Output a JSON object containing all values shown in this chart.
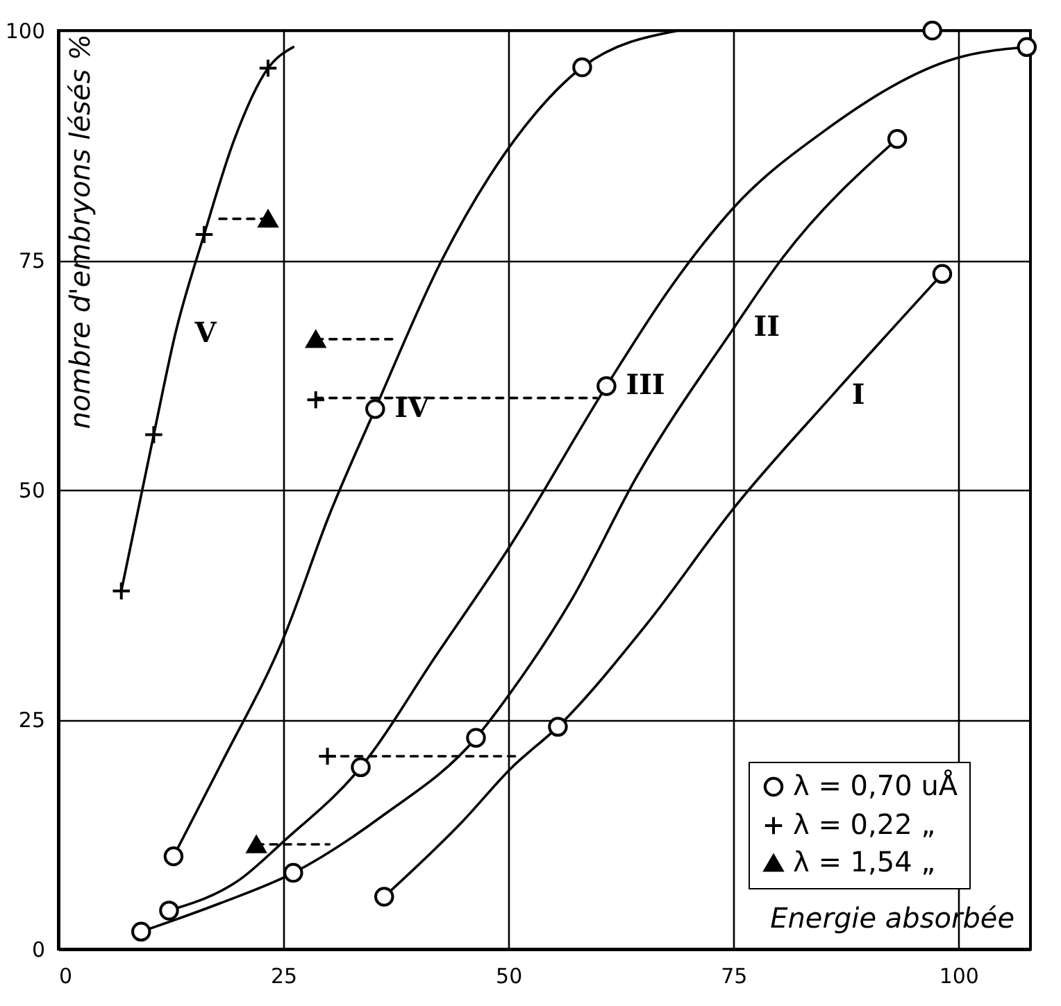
{
  "chart_data": {
    "type": "line",
    "xlabel": "Energie absorbée",
    "ylabel": "nombre d'embryons lésés %",
    "xlim": [
      0,
      108
    ],
    "ylim": [
      0,
      100
    ],
    "xticks": [
      0,
      25,
      50,
      75,
      100
    ],
    "yticks": [
      0,
      25,
      50,
      75,
      100
    ],
    "grid": true,
    "legend": "bottom right",
    "marker": "none",
    "line_style": "solid",
    "series": [
      {
        "name": "V",
        "color": "#000000",
        "x": [
          7,
          10.6,
          13,
          16.2,
          19.5,
          23.3,
          26.1
        ],
        "values": [
          39,
          56,
          67,
          77.8,
          88,
          95.9,
          98.2
        ]
      },
      {
        "name": "IV",
        "color": "#000000",
        "x": [
          12.8,
          18,
          25.2,
          30,
          35.2,
          42.6,
          51.7,
          58.2,
          68.9
        ],
        "values": [
          10.1,
          20,
          34.3,
          47,
          58.8,
          75,
          89.4,
          96,
          100
        ]
      },
      {
        "name": "III",
        "color": "#000000",
        "x": [
          12.3,
          20.2,
          25,
          33.6,
          42,
          50.2,
          60.9,
          68,
          75.1,
          85,
          99.8,
          107.6
        ],
        "values": [
          4.2,
          7.6,
          11.7,
          19.8,
          32,
          43.9,
          61.3,
          72,
          80.8,
          89,
          97,
          98.2
        ]
      },
      {
        "name": "II",
        "color": "#000000",
        "x": [
          9.2,
          18,
          26.1,
          36,
          46.4,
          50.3,
          57,
          64.3,
          75.1,
          80.5,
          93.2
        ],
        "values": [
          1.9,
          5,
          8.3,
          14.5,
          23,
          28,
          38,
          51.5,
          67.7,
          75.3,
          88.2
        ]
      },
      {
        "name": "I",
        "color": "#000000",
        "x": [
          36.2,
          45,
          50.3,
          55.5,
          65.3,
          75.2,
          86,
          98.2
        ],
        "values": [
          5.7,
          14,
          19.7,
          24.2,
          35.3,
          48.2,
          60.3,
          73.5
        ]
      },
      {
        "color": "#000000",
        "line_style": "dashed",
        "x": [
          23.3,
          17.9
        ],
        "values": [
          79.5,
          79.5
        ]
      },
      {
        "color": "#000000",
        "line_style": "dashed",
        "x": [
          28.6,
          37.5
        ],
        "values": [
          66.4,
          66.4
        ]
      },
      {
        "color": "#000000",
        "line_style": "dashed",
        "x": [
          28.6,
          59.8
        ],
        "values": [
          60,
          60
        ]
      },
      {
        "color": "#000000",
        "line_style": "dashed",
        "x": [
          29.9,
          51.2
        ],
        "values": [
          21,
          21
        ]
      },
      {
        "color": "#000000",
        "line_style": "dashed",
        "x": [
          22,
          30.1
        ],
        "values": [
          11.4,
          11.4
        ]
      },
      {
        "type": "scatter",
        "name": "λ = 0,70 uÅ",
        "marker": "circle",
        "color": "#000000",
        "x": [
          12.8,
          35.2,
          58.2,
          97.1,
          12.3,
          33.6,
          60.9,
          107.6,
          9.2,
          26.1,
          46.4,
          93.2,
          36.2,
          55.5,
          98.2
        ],
        "values": [
          10.1,
          58.8,
          96,
          100,
          4.2,
          19.8,
          61.3,
          98.2,
          1.9,
          8.3,
          23,
          88.2,
          5.7,
          24.2,
          73.5
        ]
      },
      {
        "type": "scatter",
        "name": "λ = 0,22 „",
        "marker": "cross",
        "color": "#000000",
        "x": [
          7,
          10.6,
          16.2,
          23.3,
          28.6,
          29.9
        ],
        "values": [
          39,
          56,
          77.8,
          95.9,
          59.8,
          21
        ]
      },
      {
        "type": "scatter",
        "name": "λ = 1,54 „",
        "marker": "triangle",
        "color": "#000000",
        "x": [
          23.3,
          28.6,
          22
        ],
        "values": [
          79.5,
          66.4,
          11.4
        ]
      }
    ]
  }
}
